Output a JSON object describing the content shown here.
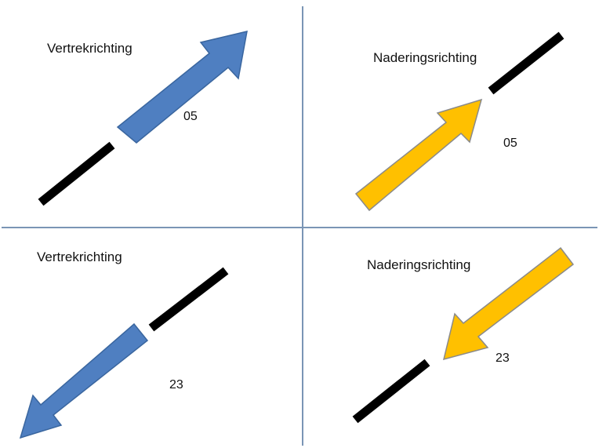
{
  "colors": {
    "divider": "#7a95b5",
    "runway": "#000000",
    "departure_arrow_fill": "#4f7fc1",
    "departure_arrow_stroke": "#3a669f",
    "approach_arrow_fill": "#ffc000",
    "approach_arrow_stroke": "#8a8a8a"
  },
  "quadrants": [
    {
      "id": "top-left",
      "label": "Vertrekrichting",
      "runway": "05",
      "arrow_type": "departure",
      "arrow_direction": "north-east"
    },
    {
      "id": "top-right",
      "label": "Naderingsrichting",
      "runway": "05",
      "arrow_type": "approach",
      "arrow_direction": "north-east"
    },
    {
      "id": "bottom-left",
      "label": "Vertrekrichting",
      "runway": "23",
      "arrow_type": "departure",
      "arrow_direction": "south-west"
    },
    {
      "id": "bottom-right",
      "label": "Naderingsrichting",
      "runway": "23",
      "arrow_type": "approach",
      "arrow_direction": "south-west"
    }
  ]
}
